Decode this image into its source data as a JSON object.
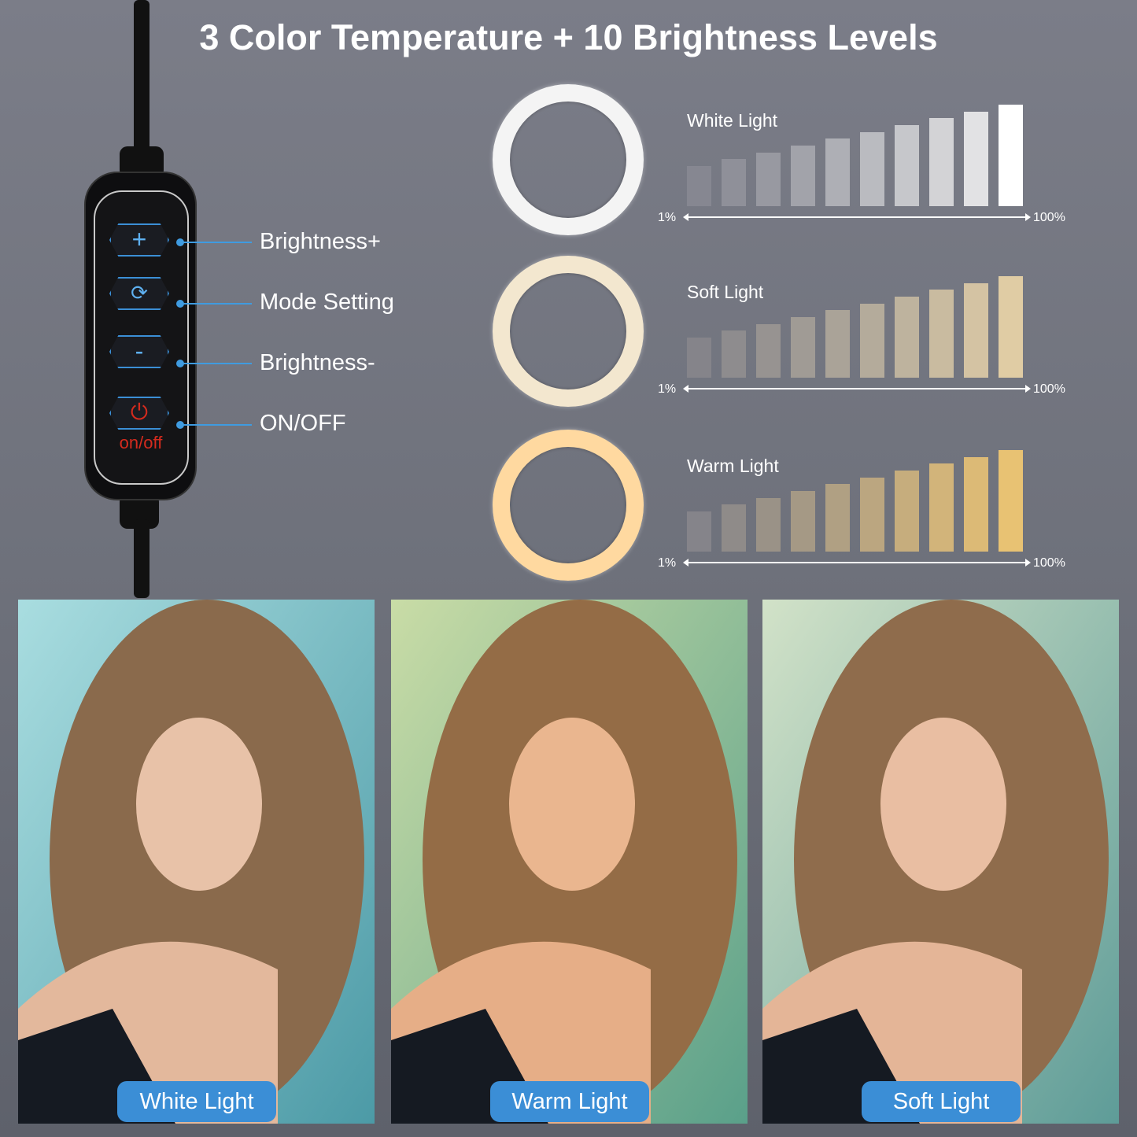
{
  "title": "3 Color Temperature + 10 Brightness Levels",
  "remote": {
    "buttons": [
      {
        "icon": "plus-icon",
        "label": "Brightness+"
      },
      {
        "icon": "cycle-arrows-icon",
        "label": "Mode Setting"
      },
      {
        "icon": "minus-icon",
        "label": "Brightness-"
      },
      {
        "icon": "power-icon",
        "label": "ON/OFF"
      }
    ],
    "power_text": "on/off",
    "accent": "#3f9be0",
    "power_color": "#d52b1e"
  },
  "chart_data": [
    {
      "type": "bar",
      "title": "White Light",
      "levels": 10,
      "min_label": "1%",
      "max_label": "100%",
      "colors": [
        "#868791",
        "#8f9099",
        "#9899a1",
        "#a2a3aa",
        "#aeafb5",
        "#babbc0",
        "#c6c7cb",
        "#d3d3d6",
        "#e2e2e4",
        "#ffffff"
      ],
      "ring_color": "#f4f4f4"
    },
    {
      "type": "bar",
      "title": "Soft Light",
      "levels": 10,
      "min_label": "1%",
      "max_label": "100%",
      "colors": [
        "#85848a",
        "#8e8c8e",
        "#979391",
        "#a09b95",
        "#aaa398",
        "#b4ab9b",
        "#beb39e",
        "#c9bba0",
        "#d4c3a3",
        "#e0cca4"
      ],
      "ring_color": "#f3e7cf"
    },
    {
      "type": "bar",
      "title": "Warm Light",
      "levels": 10,
      "min_label": "1%",
      "max_label": "100%",
      "colors": [
        "#85848a",
        "#8f8b89",
        "#9a9287",
        "#a59985",
        "#b0a083",
        "#bba680",
        "#c6ad7d",
        "#d2b47a",
        "#dcba76",
        "#e8c273"
      ],
      "ring_color": "#ffd9a0"
    }
  ],
  "photos": [
    {
      "label": "White Light",
      "bg": "#8cc9cf"
    },
    {
      "label": "Warm Light",
      "bg": "#a8c6a0"
    },
    {
      "label": "Soft Light",
      "bg": "#a9cab9"
    }
  ]
}
